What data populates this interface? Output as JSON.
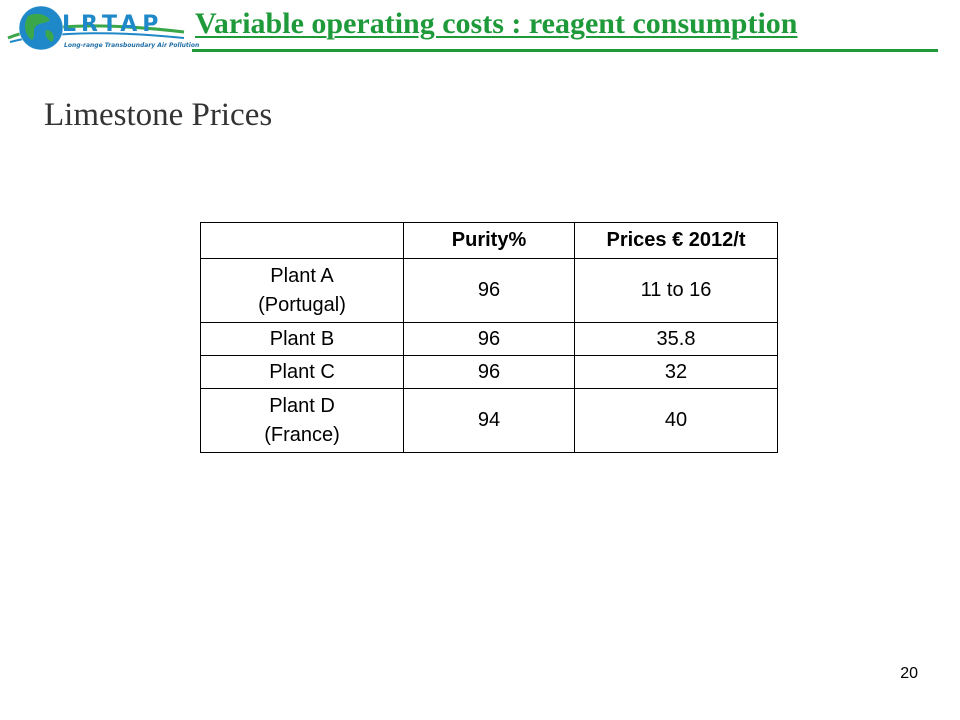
{
  "logo": {
    "wordmark": "LRTAP",
    "tagline": "Long-range Transboundary Air Pollution"
  },
  "header": {
    "title": "Variable operating costs : reagent consumption"
  },
  "subtitle": "Limestone Prices",
  "table": {
    "headers": [
      "",
      "Purity%",
      "Prices € 2012/t"
    ],
    "rows": [
      {
        "plant": "Plant A\n(Portugal)",
        "purity": "96",
        "price": "11 to 16"
      },
      {
        "plant": "Plant B",
        "purity": "96",
        "price": "35.8"
      },
      {
        "plant": "Plant C",
        "purity": "96",
        "price": "32"
      },
      {
        "plant": "Plant D\n(France)",
        "purity": "94",
        "price": "40"
      }
    ]
  },
  "page_number": "20",
  "colors": {
    "title_green": "#1e9a3a",
    "logo_blue": "#1f88c8",
    "logo_green": "#3aa84a"
  }
}
